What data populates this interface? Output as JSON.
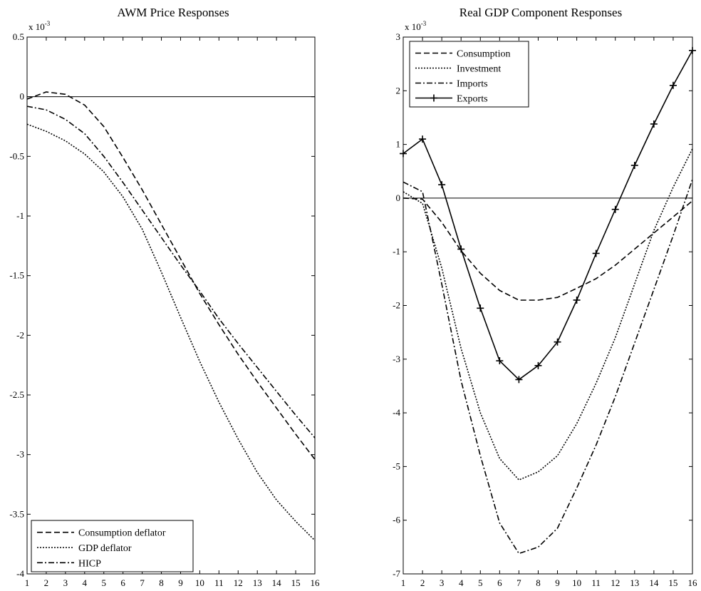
{
  "chart_data": [
    {
      "type": "line",
      "title": "AWM Price Responses",
      "exponent": {
        "base": "x 10",
        "power": "-3"
      },
      "x": [
        1,
        2,
        3,
        4,
        5,
        6,
        7,
        8,
        9,
        10,
        11,
        12,
        13,
        14,
        15,
        16
      ],
      "xlim": [
        1,
        16
      ],
      "ylim": [
        -4,
        0.5
      ],
      "yticks": [
        0.5,
        0,
        -0.5,
        -1,
        -1.5,
        -2,
        -2.5,
        -3,
        -3.5,
        -4
      ],
      "ytick_labels": [
        "0.5",
        "0",
        "-0.5",
        "-1",
        "-1.5",
        "-2",
        "-2.5",
        "-3",
        "-3.5",
        "-4"
      ],
      "zero_line": true,
      "grid": false,
      "legend_position": "bottom-left",
      "series": [
        {
          "name": "Consumption deflator",
          "style": "dashed",
          "values": [
            -0.02,
            0.04,
            0.02,
            -0.07,
            -0.25,
            -0.51,
            -0.78,
            -1.07,
            -1.36,
            -1.65,
            -1.91,
            -2.16,
            -2.39,
            -2.61,
            -2.83,
            -3.04
          ]
        },
        {
          "name": "GDP deflator",
          "style": "dotted",
          "values": [
            -0.23,
            -0.29,
            -0.37,
            -0.48,
            -0.63,
            -0.84,
            -1.11,
            -1.47,
            -1.85,
            -2.22,
            -2.56,
            -2.87,
            -3.15,
            -3.38,
            -3.56,
            -3.72
          ]
        },
        {
          "name": "HICP",
          "style": "dashdot",
          "values": [
            -0.08,
            -0.11,
            -0.19,
            -0.31,
            -0.5,
            -0.72,
            -0.95,
            -1.18,
            -1.41,
            -1.63,
            -1.86,
            -2.07,
            -2.27,
            -2.47,
            -2.67,
            -2.86
          ]
        }
      ]
    },
    {
      "type": "line",
      "title": "Real GDP Component Responses",
      "exponent": {
        "base": "x 10",
        "power": "-3"
      },
      "x": [
        1,
        2,
        3,
        4,
        5,
        6,
        7,
        8,
        9,
        10,
        11,
        12,
        13,
        14,
        15,
        16
      ],
      "xlim": [
        1,
        16
      ],
      "ylim": [
        -7,
        3
      ],
      "yticks": [
        3,
        2,
        1,
        0,
        -1,
        -2,
        -3,
        -4,
        -5,
        -6,
        -7
      ],
      "ytick_labels": [
        "3",
        "2",
        "1",
        "0",
        "-1",
        "-2",
        "-3",
        "-4",
        "-5",
        "-6",
        "-7"
      ],
      "zero_line": true,
      "grid": false,
      "legend_position": "top-left",
      "series": [
        {
          "name": "Consumption",
          "style": "dashed",
          "values": [
            0.0,
            -0.02,
            -0.45,
            -0.98,
            -1.4,
            -1.72,
            -1.9,
            -1.9,
            -1.85,
            -1.68,
            -1.5,
            -1.25,
            -0.95,
            -0.65,
            -0.35,
            -0.05
          ]
        },
        {
          "name": "Investment",
          "style": "dotted",
          "values": [
            0.12,
            -0.1,
            -1.3,
            -2.8,
            -4.0,
            -4.85,
            -5.25,
            -5.1,
            -4.8,
            -4.2,
            -3.45,
            -2.6,
            -1.6,
            -0.6,
            0.2,
            0.92
          ]
        },
        {
          "name": "Imports",
          "style": "dashdot",
          "values": [
            0.3,
            0.12,
            -1.6,
            -3.4,
            -4.8,
            -6.05,
            -6.62,
            -6.5,
            -6.15,
            -5.4,
            -4.6,
            -3.7,
            -2.7,
            -1.7,
            -0.7,
            0.35
          ]
        },
        {
          "name": "Exports",
          "style": "solid-plus",
          "values": [
            0.83,
            1.1,
            0.25,
            -0.95,
            -2.05,
            -3.03,
            -3.38,
            -3.12,
            -2.68,
            -1.9,
            -1.03,
            -0.21,
            0.61,
            1.38,
            2.1,
            2.75
          ]
        }
      ]
    }
  ]
}
